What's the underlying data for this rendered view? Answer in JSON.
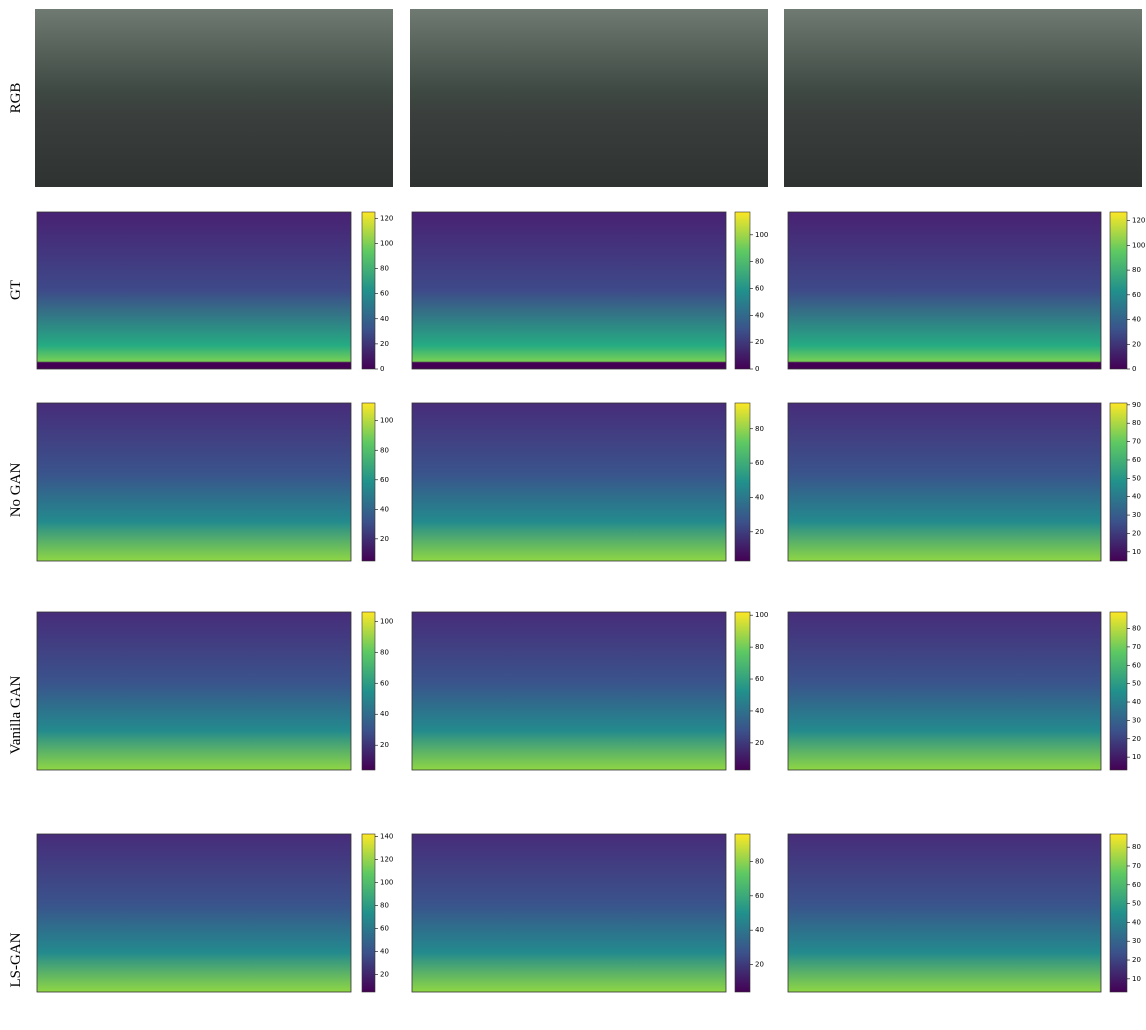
{
  "rows": [
    {
      "label": "RGB"
    },
    {
      "label": "GT",
      "colorbars": [
        {
          "ylim": [
            0,
            125
          ],
          "yticks": [
            0,
            20,
            40,
            60,
            80,
            100,
            120
          ]
        },
        {
          "ylim": [
            0,
            117
          ],
          "yticks": [
            0,
            20,
            40,
            60,
            80,
            100
          ]
        },
        {
          "ylim": [
            0,
            127
          ],
          "yticks": [
            0,
            20,
            40,
            60,
            80,
            100,
            120
          ]
        }
      ]
    },
    {
      "label": "No GAN",
      "colorbars": [
        {
          "ylim": [
            5,
            112
          ],
          "yticks": [
            20,
            40,
            60,
            80,
            100
          ]
        },
        {
          "ylim": [
            3,
            95
          ],
          "yticks": [
            20,
            40,
            60,
            80
          ]
        },
        {
          "ylim": [
            5,
            91
          ],
          "yticks": [
            10,
            20,
            30,
            40,
            50,
            60,
            70,
            80,
            90
          ]
        }
      ]
    },
    {
      "label": "Vanilla GAN",
      "colorbars": [
        {
          "ylim": [
            4,
            106
          ],
          "yticks": [
            20,
            40,
            60,
            80,
            100
          ]
        },
        {
          "ylim": [
            3,
            102
          ],
          "yticks": [
            20,
            40,
            60,
            80,
            100
          ]
        },
        {
          "ylim": [
            3,
            89
          ],
          "yticks": [
            10,
            20,
            30,
            40,
            50,
            60,
            70,
            80
          ]
        }
      ]
    },
    {
      "label": "LS-GAN",
      "colorbars": [
        {
          "ylim": [
            5,
            142
          ],
          "yticks": [
            20,
            40,
            60,
            80,
            100,
            120,
            140
          ]
        },
        {
          "ylim": [
            4,
            96
          ],
          "yticks": [
            20,
            40,
            60,
            80
          ]
        },
        {
          "ylim": [
            3,
            87
          ],
          "yticks": [
            10,
            20,
            30,
            40,
            50,
            60,
            70,
            80
          ]
        }
      ]
    }
  ]
}
